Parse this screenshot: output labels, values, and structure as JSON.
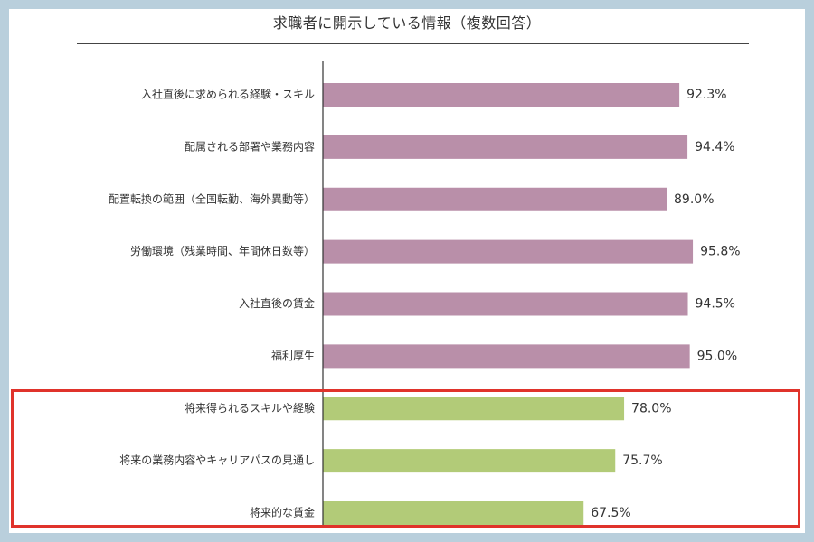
{
  "chart_data": {
    "type": "bar",
    "orientation": "horizontal",
    "title": "求職者に開示している情報（複数回答）",
    "categories": [
      "入社直後に求められる経験・スキル",
      "配属される部署や業務内容",
      "配置転換の範囲（全国転勤、海外異動等）",
      "労働環境（残業時間、年間休日数等）",
      "入社直後の賃金",
      "福利厚生",
      "将来得られるスキルや経験",
      "将来の業務内容やキャリアパスの見通し",
      "将来的な賃金"
    ],
    "values": [
      92.3,
      94.4,
      89.0,
      95.8,
      94.5,
      95.0,
      78.0,
      75.7,
      67.5
    ],
    "value_labels": [
      "92.3%",
      "94.4%",
      "89.0%",
      "95.8%",
      "94.5%",
      "95.0%",
      "78.0%",
      "75.7%",
      "67.5%"
    ],
    "bar_colors": [
      "#b98fa9",
      "#b98fa9",
      "#b98fa9",
      "#b98fa9",
      "#b98fa9",
      "#b98fa9",
      "#b2cb78",
      "#b2cb78",
      "#b2cb78"
    ],
    "highlighted_categories": [
      "将来得られるスキルや経験",
      "将来の業務内容やキャリアパスの見通し",
      "将来的な賃金"
    ],
    "highlight_color": "#e0332b",
    "xlim": [
      0,
      100
    ],
    "grid": false
  },
  "colors": {
    "background": "#b9cfdc",
    "panel": "#ffffff"
  }
}
